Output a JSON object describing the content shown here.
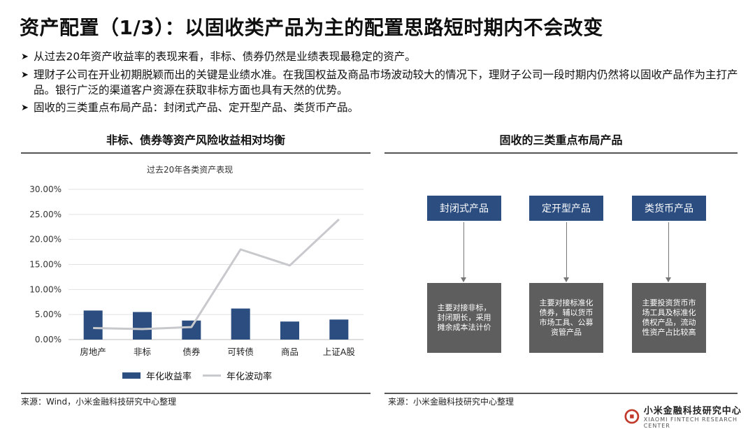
{
  "header": {
    "title": "资产配置（1/3）：以固收类产品为主的配置思路短时期内不会改变"
  },
  "bullets": [
    "从过去20年资产收益率的表现来看，非标、债券仍然是业绩表现最稳定的资产。",
    "理财子公司在开业初期脱颖而出的关键是业绩水准。在我国权益及商品市场波动较大的情况下，理财子公司一段时期内仍然将以固收产品作为主打产品。银行广泛的渠道客户资源在获取非标方面也具有天然的优势。",
    "固收的三类重点布局产品：封闭式产品、定开型产品、类货币产品。"
  ],
  "left_panel": {
    "heading": "非标、债券等资产风险收益相对均衡",
    "source": "来源：Wind，小米金融科技研究中心整理"
  },
  "right_panel": {
    "heading": "固收的三类重点布局产品",
    "source": "来源：小米金融科技研究中心整理",
    "products": [
      {
        "name": "封闭式产品",
        "desc": "主要对接非标，封闭期长，采用摊余成本法计价"
      },
      {
        "name": "定开型产品",
        "desc": "主要对接标准化债券，辅以货币市场工具、公募资管产品"
      },
      {
        "name": "类货币产品",
        "desc": "主要投资货币市场工具及标准化债权产品，流动性资产占比较高"
      }
    ]
  },
  "chart_data": {
    "type": "bar",
    "title": "过去20年各类资产表现",
    "categories": [
      "房地产",
      "非标",
      "债券",
      "可转债",
      "商品",
      "上证A股"
    ],
    "series": [
      {
        "name": "年化收益率",
        "type": "bar",
        "color": "#2b4d80",
        "values": [
          5.8,
          5.5,
          3.8,
          6.2,
          3.6,
          4.0
        ]
      },
      {
        "name": "年化波动率",
        "type": "line",
        "color": "#c7c9cc",
        "values": [
          2.3,
          2.1,
          2.5,
          18.0,
          14.8,
          24.0
        ]
      }
    ],
    "ylim": [
      0,
      30
    ],
    "yticks": [
      "0.00%",
      "5.00%",
      "10.00%",
      "15.00%",
      "20.00%",
      "25.00%",
      "30.00%"
    ],
    "grid": true,
    "legend_position": "bottom"
  },
  "logo": {
    "cn": "小米金融科技研究中心",
    "en": "XIAOMI FINTECH RESEARCH CENTER"
  }
}
